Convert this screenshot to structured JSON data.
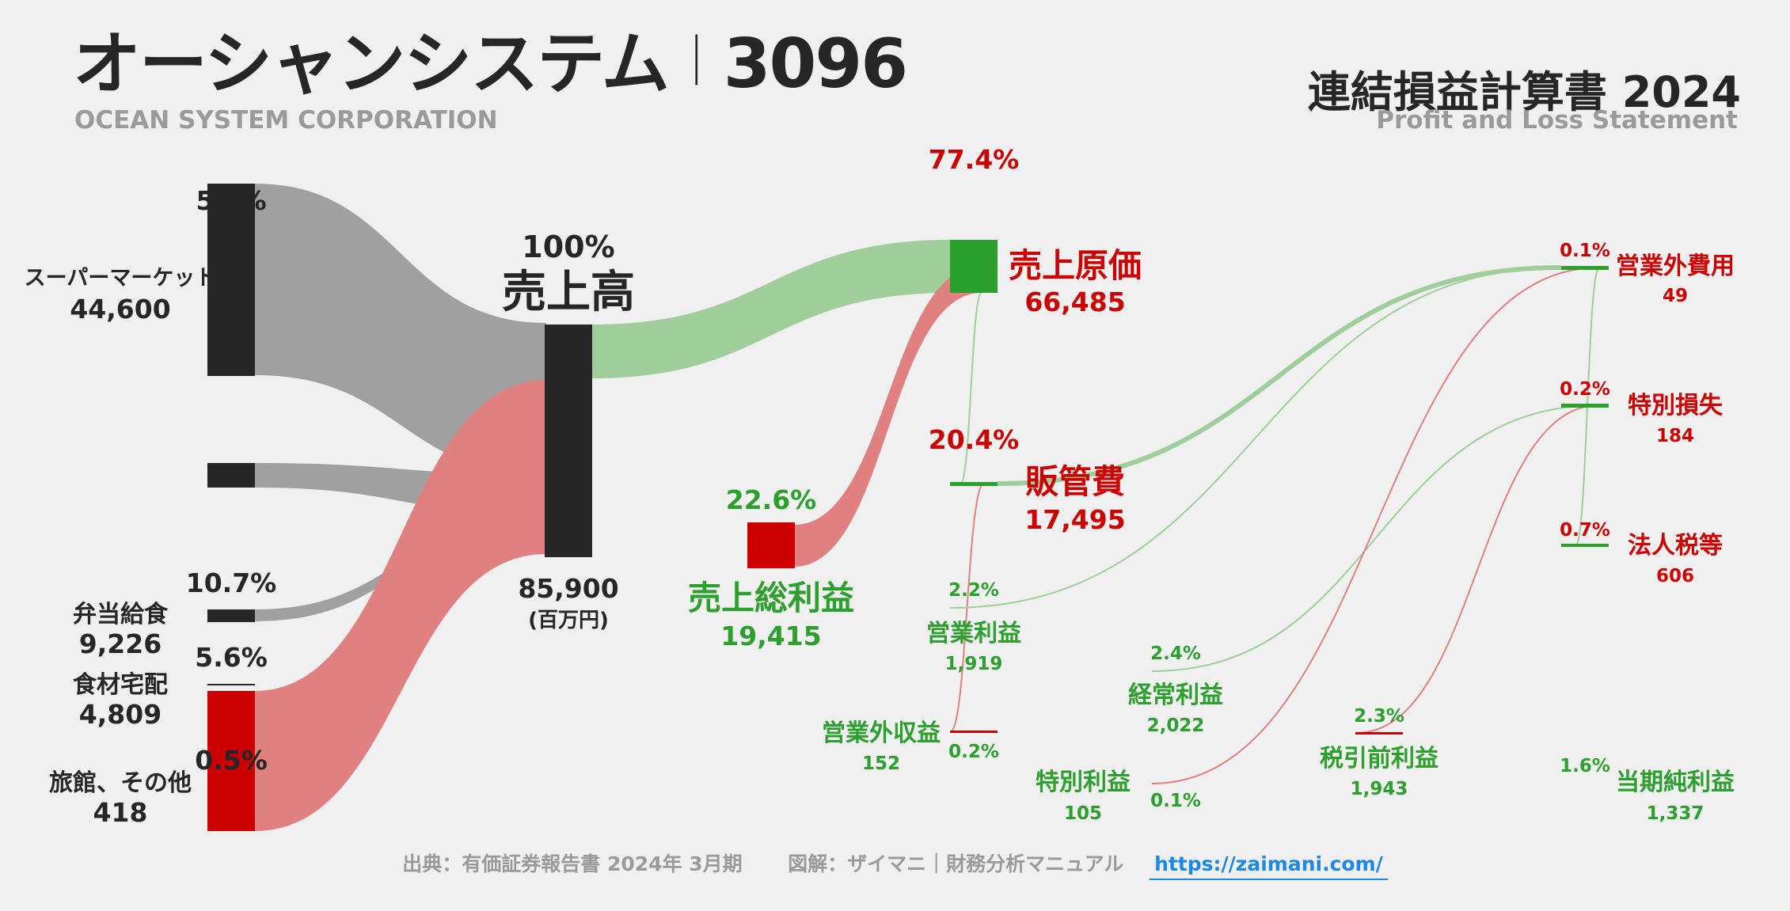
{
  "header": {
    "company_ja": "オーシャンシステム",
    "separator": "｜",
    "code": "3096",
    "company_en": "OCEAN SYSTEM CORPORATION",
    "statement_ja": "連結損益計算書 2024",
    "statement_en": "Profit and Loss Statement"
  },
  "footer": {
    "source": "出典：有価証券報告書 2024年 3月期",
    "credit": "図解：ザイマニ｜財務分析マニュアル",
    "url": "https://zaimani.com/"
  },
  "colors": {
    "dark": "#262626",
    "gray_flow": "#a0a0a0",
    "red": "#cc0000",
    "red_flow": "#e08080",
    "green": "#2ca02c",
    "green_flow": "#9fce9b",
    "muted": "#9a9a9a"
  },
  "chart_data": {
    "type": "sankey",
    "unit": "(百万円)",
    "segments": [
      {
        "name": "スーパーマーケット",
        "value": "44,600",
        "pct": "5…%"
      },
      {
        "name": "",
        "value": "",
        "pct": ""
      },
      {
        "name": "弁当給食",
        "value": "9,226",
        "pct": "10.7%"
      },
      {
        "name": "食材宅配",
        "value": "4,809",
        "pct": "5.6%"
      },
      {
        "name": "旅館、その他",
        "value": "418",
        "pct": "0.5%"
      }
    ],
    "revenue": {
      "name": "売上高",
      "value": "85,900",
      "pct": "100%"
    },
    "cost_of_sales": {
      "name": "売上原価",
      "value": "66,485",
      "pct": "77.4%"
    },
    "gross_profit": {
      "name": "売上総利益",
      "value": "19,415",
      "pct": "22.6%"
    },
    "sga": {
      "name": "販管費",
      "value": "17,495",
      "pct": "20.4%"
    },
    "operating_profit": {
      "name": "営業利益",
      "value": "1,919",
      "pct": "2.2%"
    },
    "non_operating_income": {
      "name": "営業外収益",
      "value": "152",
      "pct": "0.2%"
    },
    "non_operating_expenses": {
      "name": "営業外費用",
      "value": "49",
      "pct": "0.1%"
    },
    "ordinary_profit": {
      "name": "経常利益",
      "value": "2,022",
      "pct": "2.4%"
    },
    "extraordinary_income": {
      "name": "特別利益",
      "value": "105",
      "pct": "0.1%"
    },
    "extraordinary_losses": {
      "name": "特別損失",
      "value": "184",
      "pct": "0.2%"
    },
    "pretax_profit": {
      "name": "税引前利益",
      "value": "1,943",
      "pct": "2.3%"
    },
    "income_taxes": {
      "name": "法人税等",
      "value": "606",
      "pct": "0.7%"
    },
    "net_income": {
      "name": "当期純利益",
      "value": "1,337",
      "pct": "1.6%"
    }
  }
}
